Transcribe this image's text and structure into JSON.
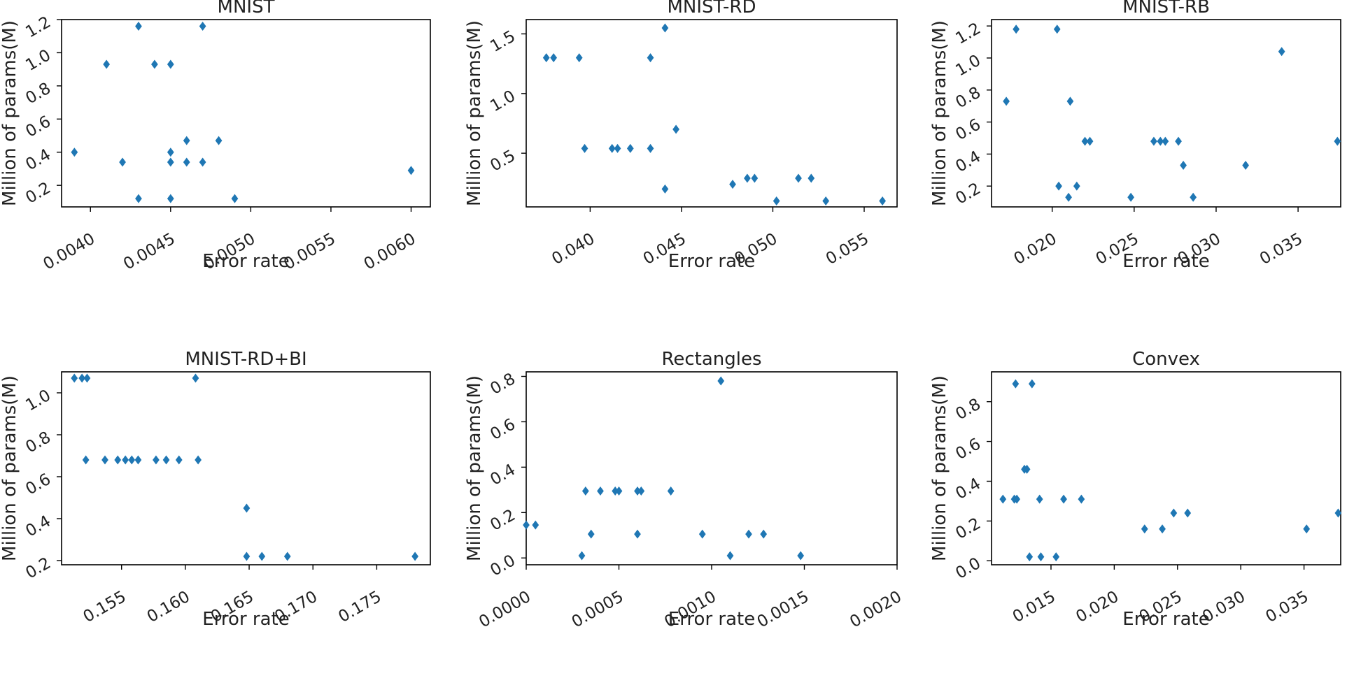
{
  "chart_data": [
    {
      "type": "scatter",
      "title": "MNIST",
      "xlabel": "Error rate",
      "ylabel": "Million of params(M)",
      "xlim": [
        0.00382,
        0.00612
      ],
      "ylim": [
        0.07,
        1.2
      ],
      "xticks": [
        0.004,
        0.0045,
        0.005,
        0.0055,
        0.006
      ],
      "xtick_labels": [
        "0.0040",
        "0.0045",
        "0.0050",
        "0.0055",
        "0.0060"
      ],
      "yticks": [
        0.2,
        0.4,
        0.6,
        0.8,
        1.0,
        1.2
      ],
      "ytick_labels": [
        "0.2",
        "0.4",
        "0.6",
        "0.8",
        "1.0",
        "1.2"
      ],
      "points": [
        [
          0.0039,
          0.4
        ],
        [
          0.0041,
          0.93
        ],
        [
          0.0042,
          0.34
        ],
        [
          0.0043,
          1.16
        ],
        [
          0.0043,
          0.12
        ],
        [
          0.0044,
          0.93
        ],
        [
          0.0045,
          0.93
        ],
        [
          0.0045,
          0.4
        ],
        [
          0.0045,
          0.34
        ],
        [
          0.0045,
          0.12
        ],
        [
          0.0046,
          0.47
        ],
        [
          0.0046,
          0.34
        ],
        [
          0.0047,
          1.16
        ],
        [
          0.0047,
          0.34
        ],
        [
          0.0048,
          0.47
        ],
        [
          0.0049,
          0.12
        ],
        [
          0.006,
          0.29
        ]
      ]
    },
    {
      "type": "scatter",
      "title": "MNIST-RD",
      "xlabel": "Error rate",
      "ylabel": "Million of params(M)",
      "xlim": [
        0.0365,
        0.0568
      ],
      "ylim": [
        0.05,
        1.62
      ],
      "xticks": [
        0.04,
        0.045,
        0.05,
        0.055
      ],
      "xtick_labels": [
        "0.040",
        "0.045",
        "0.050",
        "0.055"
      ],
      "yticks": [
        0.5,
        1.0,
        1.5
      ],
      "ytick_labels": [
        "0.5",
        "1.0",
        "1.5"
      ],
      "points": [
        [
          0.0376,
          1.3
        ],
        [
          0.038,
          1.3
        ],
        [
          0.0394,
          1.3
        ],
        [
          0.0397,
          0.54
        ],
        [
          0.0412,
          0.54
        ],
        [
          0.0415,
          0.54
        ],
        [
          0.0422,
          0.54
        ],
        [
          0.0433,
          1.3
        ],
        [
          0.0433,
          0.54
        ],
        [
          0.0441,
          1.55
        ],
        [
          0.0441,
          0.2
        ],
        [
          0.0447,
          0.7
        ],
        [
          0.0478,
          0.24
        ],
        [
          0.0486,
          0.29
        ],
        [
          0.049,
          0.29
        ],
        [
          0.0502,
          0.1
        ],
        [
          0.0514,
          0.29
        ],
        [
          0.0521,
          0.29
        ],
        [
          0.0529,
          0.1
        ],
        [
          0.056,
          0.1
        ]
      ]
    },
    {
      "type": "scatter",
      "title": "MNIST-RB",
      "xlabel": "Error rate",
      "ylabel": "Million of params(M)",
      "xlim": [
        0.0163,
        0.0376
      ],
      "ylim": [
        0.07,
        1.24
      ],
      "xticks": [
        0.02,
        0.025,
        0.03,
        0.035
      ],
      "xtick_labels": [
        "0.020",
        "0.025",
        "0.030",
        "0.035"
      ],
      "yticks": [
        0.2,
        0.4,
        0.6,
        0.8,
        1.0,
        1.2
      ],
      "ytick_labels": [
        "0.2",
        "0.4",
        "0.6",
        "0.8",
        "1.0",
        "1.2"
      ],
      "points": [
        [
          0.0172,
          0.73
        ],
        [
          0.0178,
          1.18
        ],
        [
          0.0203,
          1.18
        ],
        [
          0.0204,
          0.2
        ],
        [
          0.021,
          0.13
        ],
        [
          0.0211,
          0.73
        ],
        [
          0.0215,
          0.2
        ],
        [
          0.022,
          0.48
        ],
        [
          0.0223,
          0.48
        ],
        [
          0.0248,
          0.13
        ],
        [
          0.0262,
          0.48
        ],
        [
          0.0266,
          0.48
        ],
        [
          0.0269,
          0.48
        ],
        [
          0.0277,
          0.48
        ],
        [
          0.028,
          0.33
        ],
        [
          0.0286,
          0.13
        ],
        [
          0.0318,
          0.33
        ],
        [
          0.034,
          1.04
        ],
        [
          0.0374,
          0.48
        ]
      ]
    },
    {
      "type": "scatter",
      "title": "MNIST-RD+BI",
      "xlabel": "Error rate",
      "ylabel": "Million of params(M)",
      "xlim": [
        0.1503,
        0.1792
      ],
      "ylim": [
        0.18,
        1.1
      ],
      "xticks": [
        0.155,
        0.16,
        0.165,
        0.17,
        0.175
      ],
      "xtick_labels": [
        "0.155",
        "0.160",
        "0.165",
        "0.170",
        "0.175"
      ],
      "yticks": [
        0.2,
        0.4,
        0.6,
        0.8,
        1.0
      ],
      "ytick_labels": [
        "0.2",
        "0.4",
        "0.6",
        "0.8",
        "1.0"
      ],
      "points": [
        [
          0.1513,
          1.07
        ],
        [
          0.1519,
          1.07
        ],
        [
          0.1523,
          1.07
        ],
        [
          0.1522,
          0.68
        ],
        [
          0.1537,
          0.68
        ],
        [
          0.1547,
          0.68
        ],
        [
          0.1553,
          0.68
        ],
        [
          0.1558,
          0.68
        ],
        [
          0.1563,
          0.68
        ],
        [
          0.1577,
          0.68
        ],
        [
          0.1585,
          0.68
        ],
        [
          0.1595,
          0.68
        ],
        [
          0.1608,
          1.07
        ],
        [
          0.161,
          0.68
        ],
        [
          0.1648,
          0.45
        ],
        [
          0.1648,
          0.22
        ],
        [
          0.166,
          0.22
        ],
        [
          0.168,
          0.22
        ],
        [
          0.178,
          0.22
        ]
      ]
    },
    {
      "type": "scatter",
      "title": "Rectangles",
      "xlabel": "Error rate",
      "ylabel": "Million of params(M)",
      "xlim": [
        0.0,
        0.002
      ],
      "ylim": [
        -0.03,
        0.82
      ],
      "xticks": [
        0.0,
        0.0005,
        0.001,
        0.0015,
        0.002
      ],
      "xtick_labels": [
        "0.0000",
        "0.0005",
        "0.0010",
        "0.0015",
        "0.0020"
      ],
      "yticks": [
        0.0,
        0.2,
        0.4,
        0.6,
        0.8
      ],
      "ytick_labels": [
        "0.0",
        "0.2",
        "0.4",
        "0.6",
        "0.8"
      ],
      "points": [
        [
          0.0,
          0.145
        ],
        [
          5e-05,
          0.145
        ],
        [
          0.0003,
          0.01
        ],
        [
          0.00032,
          0.295
        ],
        [
          0.00035,
          0.105
        ],
        [
          0.0004,
          0.295
        ],
        [
          0.00048,
          0.295
        ],
        [
          0.0005,
          0.295
        ],
        [
          0.0006,
          0.295
        ],
        [
          0.0006,
          0.105
        ],
        [
          0.00062,
          0.295
        ],
        [
          0.00078,
          0.295
        ],
        [
          0.00095,
          0.105
        ],
        [
          0.00105,
          0.78
        ],
        [
          0.0011,
          0.01
        ],
        [
          0.0012,
          0.105
        ],
        [
          0.00128,
          0.105
        ],
        [
          0.00148,
          0.01
        ]
      ]
    },
    {
      "type": "scatter",
      "title": "Convex",
      "xlabel": "Error rate",
      "ylabel": "Million of params(M)",
      "xlim": [
        0.0103,
        0.0379
      ],
      "ylim": [
        -0.02,
        0.95
      ],
      "xticks": [
        0.015,
        0.02,
        0.025,
        0.03,
        0.035
      ],
      "xtick_labels": [
        "0.015",
        "0.020",
        "0.025",
        "0.030",
        "0.035"
      ],
      "yticks": [
        0.0,
        0.2,
        0.4,
        0.6,
        0.8
      ],
      "ytick_labels": [
        "0.0",
        "0.2",
        "0.4",
        "0.6",
        "0.8"
      ],
      "points": [
        [
          0.0112,
          0.31
        ],
        [
          0.0121,
          0.31
        ],
        [
          0.0123,
          0.31
        ],
        [
          0.0122,
          0.89
        ],
        [
          0.0129,
          0.46
        ],
        [
          0.0131,
          0.46
        ],
        [
          0.0133,
          0.02
        ],
        [
          0.0135,
          0.89
        ],
        [
          0.0141,
          0.31
        ],
        [
          0.0142,
          0.02
        ],
        [
          0.0154,
          0.02
        ],
        [
          0.016,
          0.31
        ],
        [
          0.0174,
          0.31
        ],
        [
          0.0224,
          0.16
        ],
        [
          0.0238,
          0.16
        ],
        [
          0.0247,
          0.24
        ],
        [
          0.0258,
          0.24
        ],
        [
          0.0352,
          0.16
        ],
        [
          0.0377,
          0.24
        ]
      ]
    }
  ]
}
